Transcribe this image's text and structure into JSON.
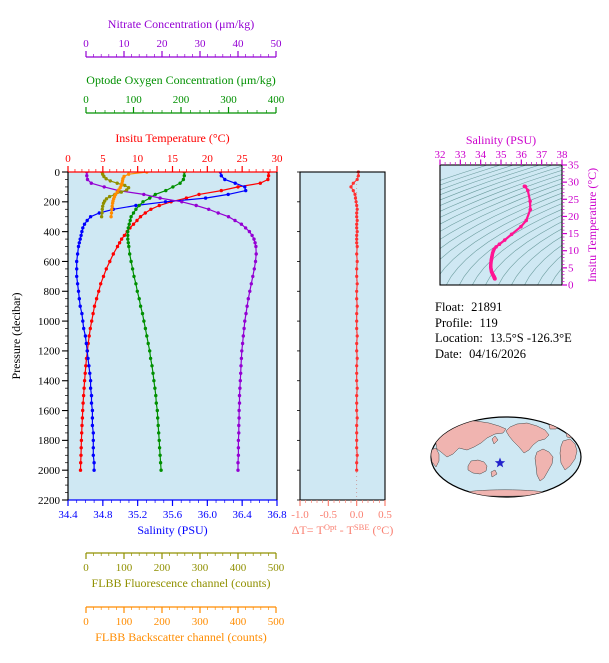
{
  "float_info": {
    "lines": [
      {
        "label": "Float:",
        "value": "21891"
      },
      {
        "label": "Profile:",
        "value": "119"
      },
      {
        "label": "Location:",
        "value": "13.5°S -126.3°E"
      },
      {
        "label": "Date:",
        "value": "04/16/2026"
      }
    ]
  },
  "colors": {
    "plot_bg": "#CFE8F3",
    "nitrate": "#9400D3",
    "oxygen": "#009000",
    "temperature": "#FF0000",
    "salinity": "#0000FF",
    "fluorescence": "#909000",
    "backscatter": "#FF8C00",
    "delta_axis": "#FA8072",
    "delta_series": "#FF3030",
    "ts_axis": "#CC00CC",
    "ts_curve": "#FF1493",
    "contours": "#5A8F8F",
    "map_land": "#F0B4B0",
    "map_ocean": "#CFE8F3",
    "star": "#2222CC"
  },
  "chart_data": [
    {
      "id": "profile-plot",
      "type": "line",
      "ylabel": "Pressure (decibar)",
      "ylim": [
        0,
        2200
      ],
      "yticks": [
        0,
        200,
        400,
        600,
        800,
        1000,
        1200,
        1400,
        1600,
        1800,
        2000,
        2200
      ],
      "x_axes": [
        {
          "id": "nitrate",
          "label": "Nitrate Concentration (μm/kg)",
          "color": "#9400D3",
          "range": [
            0,
            50
          ],
          "ticks": [
            0,
            10,
            20,
            30,
            40,
            50
          ],
          "minor": 2
        },
        {
          "id": "oxygen",
          "label": "Optode Oxygen Concentration (μm/kg)",
          "color": "#009000",
          "range": [
            0,
            400
          ],
          "ticks": [
            0,
            100,
            200,
            300,
            400
          ],
          "minor": 20
        },
        {
          "id": "temperature",
          "label": "Insitu Temperature (°C)",
          "color": "#FF0000",
          "range": [
            0,
            30
          ],
          "ticks": [
            0,
            5,
            10,
            15,
            20,
            25,
            30
          ],
          "minor": 1
        },
        {
          "id": "salinity",
          "label": "Salinity (PSU)",
          "color": "#0000FF",
          "range": [
            34.4,
            36.8
          ],
          "ticks": [
            "34.4",
            "34.8",
            "35.2",
            "35.6",
            "36.0",
            "36.4",
            "36.8"
          ],
          "minor": 0.1
        },
        {
          "id": "fluorescence",
          "label": "FLBB Fluorescence channel (counts)",
          "color": "#909000",
          "range": [
            0,
            500
          ],
          "ticks": [
            0,
            100,
            200,
            300,
            400,
            500
          ],
          "minor": 20
        },
        {
          "id": "backscatter",
          "label": "FLBB Backscatter channel (counts)",
          "color": "#FF8C00",
          "range": [
            0,
            500
          ],
          "ticks": [
            0,
            100,
            200,
            300,
            400,
            500
          ],
          "minor": 20
        }
      ],
      "pressure": [
        0,
        25,
        50,
        75,
        100,
        125,
        150,
        175,
        200,
        225,
        250,
        275,
        300,
        325,
        350,
        375,
        400,
        425,
        450,
        475,
        500,
        550,
        600,
        650,
        700,
        750,
        800,
        850,
        900,
        950,
        1000,
        1050,
        1100,
        1150,
        1200,
        1250,
        1300,
        1350,
        1400,
        1450,
        1500,
        1550,
        1600,
        1650,
        1700,
        1750,
        1800,
        1850,
        1900,
        1950,
        2000
      ],
      "pressure_shallow": [
        0,
        15,
        30,
        45,
        60,
        75,
        90,
        105,
        120,
        135,
        150,
        165,
        180,
        195,
        210,
        230,
        250,
        275,
        300
      ],
      "series": [
        {
          "id": "temperature",
          "axis": "temperature",
          "color": "#FF0000",
          "pressure_key": "pressure",
          "values": [
            28.8,
            28.8,
            28.7,
            27.6,
            24.4,
            22.0,
            18.8,
            17.0,
            14.8,
            13.1,
            11.9,
            11.1,
            10.4,
            9.9,
            9.4,
            8.9,
            8.5,
            8.1,
            7.7,
            7.4,
            7.1,
            6.5,
            6.0,
            5.5,
            5.1,
            4.7,
            4.4,
            4.1,
            3.8,
            3.6,
            3.4,
            3.2,
            3.05,
            2.9,
            2.78,
            2.66,
            2.56,
            2.47,
            2.38,
            2.31,
            2.24,
            2.17,
            2.11,
            2.06,
            2.01,
            1.97,
            1.93,
            1.89,
            1.86,
            1.83,
            1.8
          ]
        },
        {
          "id": "salinity",
          "axis": "salinity",
          "color": "#0000FF",
          "pressure_key": "pressure",
          "values": [
            36.15,
            36.16,
            36.2,
            36.32,
            36.43,
            36.44,
            36.24,
            35.98,
            35.52,
            35.18,
            34.92,
            34.76,
            34.66,
            34.62,
            34.59,
            34.57,
            34.56,
            34.55,
            34.54,
            34.53,
            34.52,
            34.51,
            34.5,
            34.5,
            34.5,
            34.51,
            34.52,
            34.53,
            34.54,
            34.56,
            34.57,
            34.58,
            34.6,
            34.61,
            34.62,
            34.63,
            34.64,
            34.65,
            34.66,
            34.66,
            34.67,
            34.67,
            34.68,
            34.68,
            34.68,
            34.69,
            34.69,
            34.69,
            34.69,
            34.7,
            34.7
          ]
        },
        {
          "id": "oxygen",
          "axis": "oxygen",
          "color": "#009000",
          "pressure_key": "pressure",
          "values": [
            207,
            207,
            205,
            198,
            183,
            168,
            146,
            134,
            120,
            112,
            105,
            100,
            95,
            93,
            91,
            89,
            88,
            88,
            88,
            89,
            90,
            92,
            95,
            98,
            101,
            105,
            108,
            112,
            115,
            119,
            122,
            125,
            128,
            131,
            134,
            136,
            139,
            141,
            143,
            145,
            147,
            148,
            150,
            151,
            152,
            153,
            154,
            155,
            156,
            157,
            158
          ]
        },
        {
          "id": "nitrate",
          "axis": "nitrate",
          "color": "#9400D3",
          "pressure_key": "pressure",
          "values": [
            0.2,
            0.2,
            0.4,
            1.4,
            4.8,
            8.6,
            15.2,
            19.5,
            25.2,
            29.0,
            32.3,
            34.8,
            37.5,
            39.2,
            40.9,
            42.0,
            43.0,
            43.7,
            44.2,
            44.5,
            44.7,
            44.8,
            44.6,
            44.3,
            43.9,
            43.5,
            43.1,
            42.7,
            42.4,
            42.1,
            41.8,
            41.6,
            41.4,
            41.2,
            41.0,
            40.9,
            40.8,
            40.7,
            40.6,
            40.5,
            40.4,
            40.4,
            40.3,
            40.3,
            40.2,
            40.2,
            40.1,
            40.1,
            40.1,
            40.0,
            40.0
          ]
        },
        {
          "id": "fluorescence",
          "axis": "fluorescence",
          "color": "#909000",
          "pressure_key": "pressure_shallow",
          "values": [
            42,
            44,
            47,
            53,
            64,
            82,
            102,
            112,
            107,
            93,
            76,
            62,
            54,
            49,
            46,
            44,
            43,
            42,
            41
          ]
        },
        {
          "id": "backscatter",
          "axis": "backscatter",
          "color": "#FF8C00",
          "pressure_key": "pressure_shallow",
          "values": [
            160,
            112,
            100,
            97,
            96,
            95,
            93,
            90,
            86,
            82,
            78,
            75,
            73,
            71,
            70,
            69,
            68,
            67,
            66
          ]
        }
      ]
    },
    {
      "id": "delta-t-plot",
      "type": "line",
      "xlabel_text": "ΔT= TOpt - TSBE (°C)",
      "xlabel_parts": [
        {
          "text": "ΔT= T"
        },
        {
          "text": "Opt",
          "sup": true
        },
        {
          "text": " - T"
        },
        {
          "text": "SBE",
          "sup": true
        },
        {
          "text": " (°C)"
        }
      ],
      "xlim": [
        -1.0,
        0.5
      ],
      "xticks": [
        "-1.0",
        "-0.5",
        "0.0",
        "0.5"
      ],
      "minor": 0.1,
      "axis_color": "#FA8072",
      "series_color": "#FF3030",
      "values": [
        0.03,
        0.03,
        0.01,
        -0.06,
        -0.1,
        -0.06,
        -0.03,
        -0.02,
        -0.01,
        0.0,
        0.01,
        0.0,
        0.0,
        0.01,
        0.0,
        0.0,
        0.01,
        0.0,
        0.0,
        0.0,
        0.01,
        0.0,
        0.01,
        0.0,
        0.0,
        0.01,
        0.0,
        0.0,
        0.01,
        0.0,
        0.0,
        0.0,
        0.01,
        0.0,
        0.0,
        0.01,
        0.0,
        0.0,
        0.0,
        0.01,
        0.0,
        0.0,
        0.0,
        0.01,
        0.0,
        0.0,
        0.0,
        0.0,
        0.01,
        0.0,
        0.0
      ]
    },
    {
      "id": "ts-diagram",
      "type": "scatter",
      "xlabel": "Salinity (PSU)",
      "ylabel": "Insitu Temperature (°C)",
      "xlim": [
        32,
        38
      ],
      "xticks": [
        32,
        33,
        34,
        35,
        36,
        37,
        38
      ],
      "x_minor": 0.25,
      "ylim": [
        0,
        35
      ],
      "yticks": [
        0,
        5,
        10,
        15,
        20,
        25,
        30,
        35
      ],
      "y_minor": 1,
      "axis_color": "#CC00CC",
      "curve_color": "#FF1493",
      "contour_color": "#5A8F8F",
      "contour_sigma_range": [
        19,
        30.5
      ],
      "contour_sigma_step": 0.5,
      "curve_source": "temperature and salinity series versus pressure"
    }
  ]
}
